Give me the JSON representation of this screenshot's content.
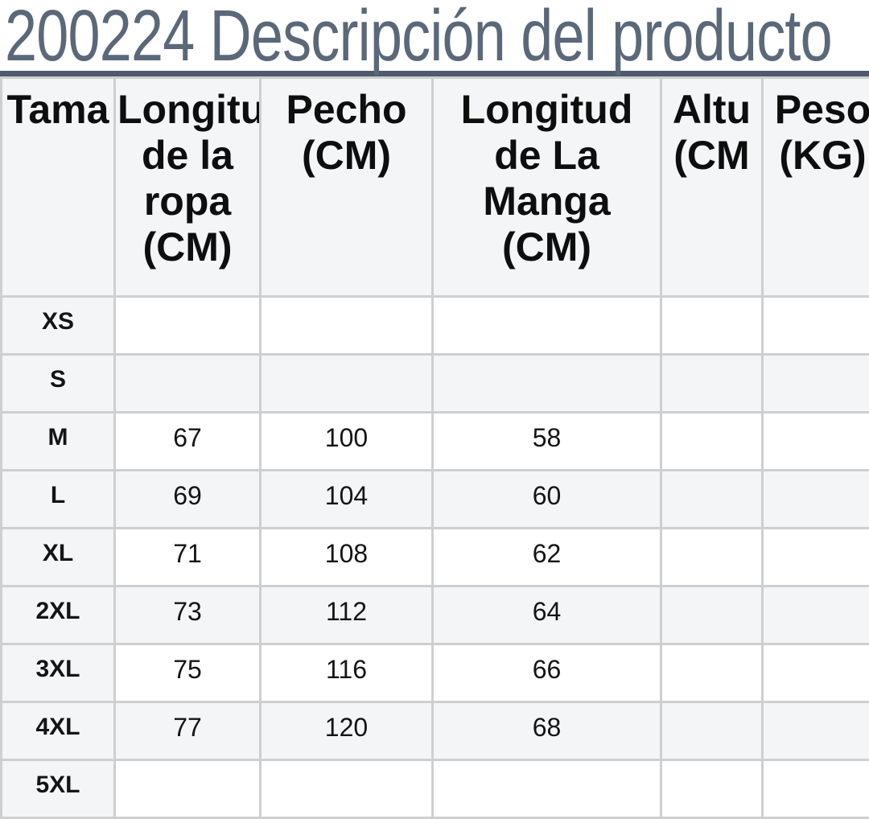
{
  "title": "200224 Descripción del producto",
  "colors": {
    "title_color": "#5a6879",
    "table_top_border": "#4f5b6c",
    "cell_border": "#cfcfcf",
    "stripe_bg": "#f4f5f7",
    "text_color": "#141414"
  },
  "table": {
    "columns": [
      "Tama",
      "Longitu de la ropa (CM)",
      "Pecho (CM)",
      "Longitud de La Manga (CM)",
      "Altu (CM",
      "Peso (KG)"
    ],
    "rows": [
      {
        "size": "XS",
        "values": [
          "",
          "",
          "",
          "",
          ""
        ]
      },
      {
        "size": "S",
        "values": [
          "",
          "",
          "",
          "",
          ""
        ]
      },
      {
        "size": "M",
        "values": [
          "67",
          "100",
          "58",
          "",
          ""
        ]
      },
      {
        "size": "L",
        "values": [
          "69",
          "104",
          "60",
          "",
          ""
        ]
      },
      {
        "size": "XL",
        "values": [
          "71",
          "108",
          "62",
          "",
          ""
        ]
      },
      {
        "size": "2XL",
        "values": [
          "73",
          "112",
          "64",
          "",
          ""
        ]
      },
      {
        "size": "3XL",
        "values": [
          "75",
          "116",
          "66",
          "",
          ""
        ]
      },
      {
        "size": "4XL",
        "values": [
          "77",
          "120",
          "68",
          "",
          ""
        ]
      },
      {
        "size": "5XL",
        "values": [
          "",
          "",
          "",
          "",
          ""
        ]
      }
    ]
  }
}
